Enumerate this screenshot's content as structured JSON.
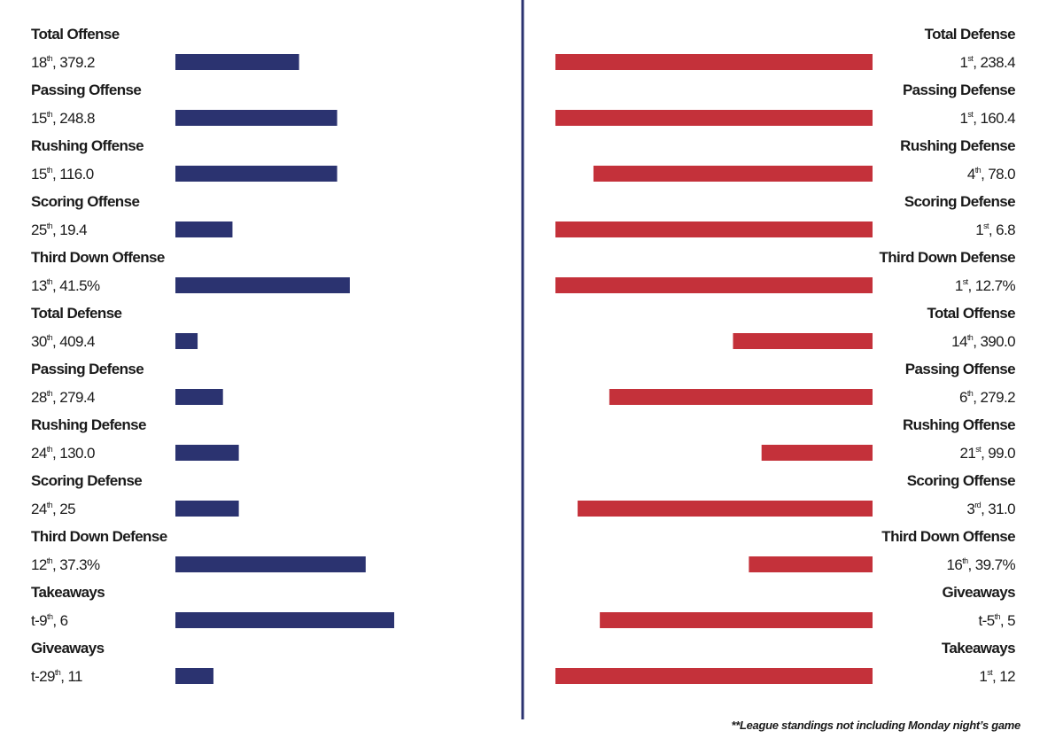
{
  "chart_data": {
    "type": "bar",
    "xlim": [
      0,
      100
    ],
    "note": "**League standings not including Monday night’s game",
    "left": {
      "color": "#2b3370",
      "rows": [
        {
          "label": "Total Offense",
          "rank": "18",
          "suffix": "th",
          "stat": ", 379.2",
          "bar": 39
        },
        {
          "label": "Passing Offense",
          "rank": "15",
          "suffix": "th",
          "stat": ", 248.8",
          "bar": 51
        },
        {
          "label": "Rushing Offense",
          "rank": "15",
          "suffix": "th",
          "stat": ", 116.0",
          "bar": 51
        },
        {
          "label": "Scoring Offense",
          "rank": "25",
          "suffix": "th",
          "stat": ", 19.4",
          "bar": 18
        },
        {
          "label": "Third Down Offense",
          "rank": "13",
          "suffix": "th",
          "stat": ", 41.5%",
          "bar": 55
        },
        {
          "label": "Total Defense",
          "rank": "30",
          "suffix": "th",
          "stat": ", 409.4",
          "bar": 7
        },
        {
          "label": "Passing Defense",
          "rank": "28",
          "suffix": "th",
          "stat": ", 279.4",
          "bar": 15
        },
        {
          "label": "Rushing Defense",
          "rank": "24",
          "suffix": "th",
          "stat": ", 130.0",
          "bar": 20
        },
        {
          "label": "Scoring Defense",
          "rank": "24",
          "suffix": "th",
          "stat": ", 25",
          "bar": 20
        },
        {
          "label": "Third Down Defense",
          "rank": "12",
          "suffix": "th",
          "stat": ", 37.3%",
          "bar": 60
        },
        {
          "label": "Takeaways",
          "rank": "t-9",
          "suffix": "th",
          "stat": ", 6",
          "bar": 69
        },
        {
          "label": "Giveaways",
          "rank": "t-29",
          "suffix": "th",
          "stat": ", 11",
          "bar": 12
        }
      ]
    },
    "right": {
      "color": "#c4313a",
      "rows": [
        {
          "label": "Total Defense",
          "rank": "1",
          "suffix": "st",
          "stat": ", 238.4",
          "bar": 100
        },
        {
          "label": "Passing Defense",
          "rank": "1",
          "suffix": "st",
          "stat": ", 160.4",
          "bar": 100
        },
        {
          "label": "Rushing Defense",
          "rank": "4",
          "suffix": "th",
          "stat": ", 78.0",
          "bar": 88
        },
        {
          "label": "Scoring Defense",
          "rank": "1",
          "suffix": "st",
          "stat": ", 6.8",
          "bar": 100
        },
        {
          "label": "Third Down Defense",
          "rank": "1",
          "suffix": "st",
          "stat": ", 12.7%",
          "bar": 100
        },
        {
          "label": "Total Offense",
          "rank": "14",
          "suffix": "th",
          "stat": ", 390.0",
          "bar": 44
        },
        {
          "label": "Passing Offense",
          "rank": "6",
          "suffix": "th",
          "stat": ", 279.2",
          "bar": 83
        },
        {
          "label": "Rushing Offense",
          "rank": "21",
          "suffix": "st",
          "stat": ", 99.0",
          "bar": 35
        },
        {
          "label": "Scoring Offense",
          "rank": "3",
          "suffix": "rd",
          "stat": ", 31.0",
          "bar": 93
        },
        {
          "label": "Third Down Offense",
          "rank": "16",
          "suffix": "th",
          "stat": ", 39.7%",
          "bar": 39
        },
        {
          "label": "Giveaways",
          "rank": "t-5",
          "suffix": "th",
          "stat": ", 5",
          "bar": 86
        },
        {
          "label": "Takeaways",
          "rank": "1",
          "suffix": "st",
          "stat": ", 12",
          "bar": 100
        }
      ]
    }
  }
}
